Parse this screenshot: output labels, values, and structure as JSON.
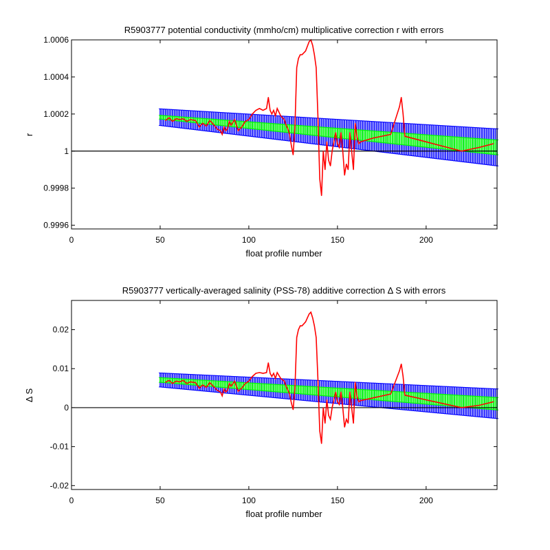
{
  "chart_data": [
    {
      "type": "line",
      "title": "R5903777 potential conductivity (mmho/cm) multiplicative correction r with errors",
      "xlabel": "float profile number",
      "ylabel": "r",
      "xlim": [
        0,
        240
      ],
      "ylim": [
        0.99958,
        1.0006
      ],
      "xticks": [
        0,
        50,
        100,
        150,
        200
      ],
      "xtick_labels": [
        "0",
        "50",
        "100",
        "150",
        "200"
      ],
      "yticks": [
        0.9996,
        0.9998,
        1.0,
        1.0002,
        1.0004,
        1.0006
      ],
      "ytick_labels": [
        "0.9996",
        "0.9998",
        "1",
        "1.0002",
        "1.0004",
        "1.0006"
      ],
      "grid": false,
      "reference_line": {
        "y": 1.0,
        "color": "#000000"
      },
      "fit": {
        "x_start": 50,
        "x_end": 240,
        "value_start": 1.000183,
        "value_end": 1.00002,
        "inner_error_start": 1e-05,
        "inner_error_end": 4e-05,
        "outer_error_start": 4.5e-05,
        "outer_error_end": 0.0001,
        "inner_color": "#00ff00",
        "outer_color": "#0000ff"
      },
      "series": [
        {
          "color": "#ff0000",
          "x": [
            53,
            55,
            57,
            59,
            61,
            63,
            65,
            67,
            70,
            72,
            74,
            76,
            78,
            80,
            82,
            84,
            85,
            86,
            87,
            88,
            89,
            90,
            92,
            94,
            96,
            98,
            100,
            102,
            104,
            106,
            108,
            110,
            111,
            112,
            113,
            114,
            115,
            116,
            118,
            120,
            121,
            122,
            123,
            124,
            125,
            126,
            127,
            128,
            129,
            130,
            132,
            134,
            135,
            136,
            137,
            138,
            139,
            140,
            141,
            142,
            143,
            144,
            145,
            146,
            147,
            148,
            149,
            150,
            151,
            152,
            153,
            154,
            155,
            156,
            157,
            158,
            159,
            160,
            161,
            162,
            163,
            170,
            180,
            185,
            186,
            187,
            188,
            200,
            220,
            230,
            238
          ],
          "y": [
            1.000165,
            1.00018,
            1.00016,
            1.000175,
            1.00017,
            1.000175,
            1.00016,
            1.00017,
            1.000165,
            1.00013,
            1.00015,
            1.000135,
            1.000165,
            1.000145,
            1.00012,
            1.00011,
            1.00009,
            1.00013,
            1.00011,
            1.00012,
            1.00016,
            1.00014,
            1.00017,
            1.00011,
            1.00013,
            1.00016,
            1.00017,
            1.0002,
            1.00022,
            1.00023,
            1.00022,
            1.00023,
            1.00029,
            1.00022,
            1.0002,
            1.00022,
            1.00019,
            1.00023,
            1.00019,
            1.00017,
            1.00014,
            1.00012,
            1.00009,
            1.00003,
            0.99998,
            1.00013,
            1.00045,
            1.0005,
            1.00052,
            1.00052,
            1.00054,
            1.00059,
            1.0006,
            1.00057,
            1.00052,
            1.00045,
            1.00018,
            0.99985,
            0.99976,
            1.0,
            0.9999,
            1.00005,
            0.99995,
            0.99992,
            1.0,
            1.00005,
            1.0001,
            1.00004,
            1.00002,
            1.0001,
            1.0,
            0.99987,
            0.99993,
            0.9999,
            1.0001,
            1.0,
            0.9999,
            1.00015,
            1.00008,
            1.00004,
            1.00005,
            1.00007,
            1.00009,
            1.00024,
            1.00029,
            1.0002,
            1.00008,
            1.00005,
            1.0,
            1.00002,
            1.00004
          ]
        }
      ]
    },
    {
      "type": "line",
      "title": "R5903777 vertically-averaged salinity (PSS-78) additive correction Δ S with errors",
      "xlabel": "float profile number",
      "ylabel": "Δ S",
      "xlim": [
        0,
        240
      ],
      "ylim": [
        -0.021,
        0.0275
      ],
      "xticks": [
        0,
        50,
        100,
        150,
        200
      ],
      "xtick_labels": [
        "0",
        "50",
        "100",
        "150",
        "200"
      ],
      "yticks": [
        -0.02,
        -0.01,
        0,
        0.01,
        0.02
      ],
      "ytick_labels": [
        "-0.02",
        "-0.01",
        "0",
        "0.01",
        "0.02"
      ],
      "grid": false,
      "reference_line": {
        "y": 0,
        "color": "#000000"
      },
      "fit": {
        "x_start": 50,
        "x_end": 240,
        "value_start": 0.0071,
        "value_end": 0.001,
        "inner_error_start": 0.0006,
        "inner_error_end": 0.0016,
        "outer_error_start": 0.0018,
        "outer_error_end": 0.0038,
        "inner_color": "#00ff00",
        "outer_color": "#0000ff"
      },
      "series": [
        {
          "color": "#ff0000",
          "x": [
            53,
            55,
            57,
            59,
            61,
            63,
            65,
            67,
            70,
            72,
            74,
            76,
            78,
            80,
            82,
            84,
            85,
            86,
            87,
            88,
            89,
            90,
            92,
            94,
            96,
            98,
            100,
            102,
            104,
            106,
            108,
            110,
            111,
            112,
            113,
            114,
            115,
            116,
            118,
            120,
            121,
            122,
            123,
            124,
            125,
            126,
            127,
            128,
            129,
            130,
            132,
            134,
            135,
            136,
            137,
            138,
            139,
            140,
            141,
            142,
            143,
            144,
            145,
            146,
            147,
            148,
            149,
            150,
            151,
            152,
            153,
            154,
            155,
            156,
            157,
            158,
            159,
            160,
            161,
            162,
            163,
            170,
            180,
            185,
            186,
            187,
            188,
            200,
            220,
            230,
            238
          ],
          "y": [
            0.0065,
            0.007,
            0.0062,
            0.0068,
            0.0066,
            0.007,
            0.0062,
            0.0066,
            0.0064,
            0.005,
            0.0058,
            0.0052,
            0.0064,
            0.0055,
            0.0045,
            0.004,
            0.003,
            0.0048,
            0.004,
            0.0045,
            0.0062,
            0.0055,
            0.0068,
            0.0042,
            0.005,
            0.0062,
            0.0068,
            0.008,
            0.0088,
            0.009,
            0.0088,
            0.009,
            0.0115,
            0.0088,
            0.008,
            0.0088,
            0.0075,
            0.009,
            0.0075,
            0.0068,
            0.0055,
            0.0045,
            0.0035,
            0.0012,
            -0.0005,
            0.005,
            0.018,
            0.02,
            0.021,
            0.021,
            0.022,
            0.024,
            0.0245,
            0.023,
            0.021,
            0.018,
            0.007,
            -0.006,
            -0.0092,
            0.0,
            -0.004,
            0.002,
            -0.002,
            -0.003,
            0.0,
            0.002,
            0.004,
            0.0015,
            0.0008,
            0.004,
            0.0,
            -0.005,
            -0.003,
            -0.004,
            0.004,
            0.0,
            -0.004,
            0.0065,
            0.003,
            0.0015,
            0.0018,
            0.0025,
            0.0035,
            0.0095,
            0.0112,
            0.008,
            0.0032,
            0.002,
            0.0,
            0.0006,
            0.0015
          ]
        }
      ]
    }
  ]
}
